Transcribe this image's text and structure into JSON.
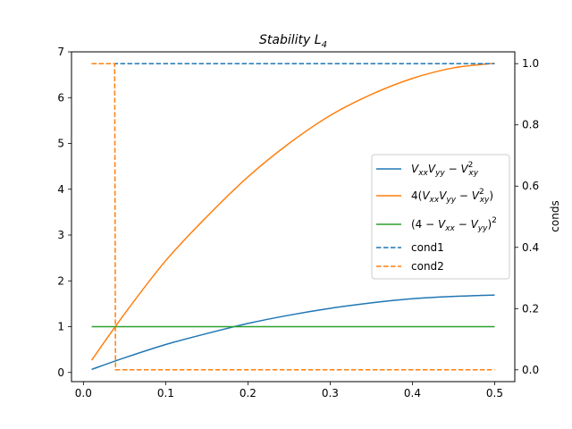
{
  "chart_data": {
    "type": "line",
    "title": "Stability L",
    "title_subscript": "4",
    "xlim": [
      -0.0145,
      0.5245
    ],
    "ylim_left": [
      -0.2,
      7.0
    ],
    "ylim_right": [
      -0.0385,
      1.0385
    ],
    "ylabel_right": "conds",
    "x_ticks": [
      0.0,
      0.1,
      0.2,
      0.3,
      0.4,
      0.5
    ],
    "x_tick_labels": [
      "0.0",
      "0.1",
      "0.2",
      "0.3",
      "0.4",
      "0.5"
    ],
    "y_left_ticks": [
      0,
      1,
      2,
      3,
      4,
      5,
      6,
      7
    ],
    "y_left_tick_labels": [
      "0",
      "1",
      "2",
      "3",
      "4",
      "5",
      "6",
      "7"
    ],
    "y_right_ticks": [
      0.0,
      0.2,
      0.4,
      0.6,
      0.8,
      1.0
    ],
    "y_right_tick_labels": [
      "0.0",
      "0.2",
      "0.4",
      "0.6",
      "0.8",
      "1.0"
    ],
    "grid": false,
    "legend_position": "center-right",
    "series": [
      {
        "name": "V_xx V_yy − V_xy²",
        "axis": "left",
        "color": "#1f77b4",
        "style": "solid",
        "x": [
          0.01,
          0.05,
          0.1,
          0.15,
          0.2,
          0.25,
          0.3,
          0.35,
          0.4,
          0.45,
          0.5
        ],
        "y": [
          0.067,
          0.32,
          0.61,
          0.85,
          1.07,
          1.25,
          1.4,
          1.52,
          1.61,
          1.66,
          1.69
        ]
      },
      {
        "name": "4(V_xx V_yy − V_xy²)",
        "axis": "left",
        "color": "#ff7f0e",
        "style": "solid",
        "x": [
          0.01,
          0.05,
          0.1,
          0.15,
          0.2,
          0.25,
          0.3,
          0.35,
          0.4,
          0.45,
          0.5
        ],
        "y": [
          0.268,
          1.28,
          2.44,
          3.4,
          4.27,
          5.0,
          5.61,
          6.07,
          6.42,
          6.65,
          6.75
        ]
      },
      {
        "name": "(4 − V_xx − V_yy)²",
        "axis": "left",
        "color": "#2ca02c",
        "style": "solid",
        "x": [
          0.01,
          0.5
        ],
        "y": [
          1.0,
          1.0
        ]
      },
      {
        "name": "cond1",
        "axis": "right",
        "color": "#1f77b4",
        "style": "dashed",
        "x": [
          0.01,
          0.5
        ],
        "y": [
          1.0,
          1.0
        ]
      },
      {
        "name": "cond2",
        "axis": "right",
        "color": "#ff7f0e",
        "style": "dashed",
        "x": [
          0.01,
          0.038,
          0.039,
          0.5
        ],
        "y": [
          1.0,
          1.0,
          0.0,
          0.0
        ]
      }
    ]
  }
}
